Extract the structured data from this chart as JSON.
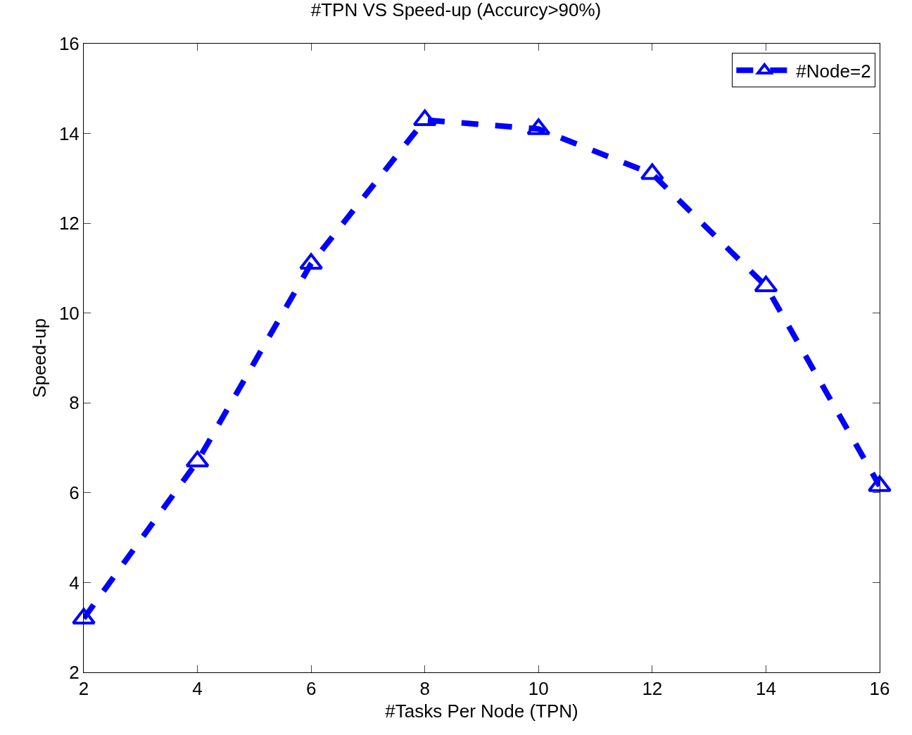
{
  "chart_data": {
    "type": "line",
    "title": "#TPN VS Speed-up (Accurcy>90%)",
    "xlabel": "#Tasks Per Node (TPN)",
    "ylabel": "Speed-up",
    "x": [
      2,
      4,
      6,
      8,
      10,
      12,
      14,
      16
    ],
    "series": [
      {
        "name": "#Node=2",
        "color": "#0000ff",
        "values": [
          3.2,
          6.7,
          11.1,
          14.3,
          14.1,
          13.1,
          10.6,
          6.15
        ]
      }
    ],
    "xlim": [
      2,
      16
    ],
    "xticks": [
      2,
      4,
      6,
      8,
      10,
      12,
      14,
      16
    ],
    "ylim": [
      2,
      16
    ],
    "yticks": [
      2,
      4,
      6,
      8,
      10,
      12,
      14,
      16
    ],
    "legend": "top right",
    "marker": "triangle",
    "line_style": "dashed"
  }
}
